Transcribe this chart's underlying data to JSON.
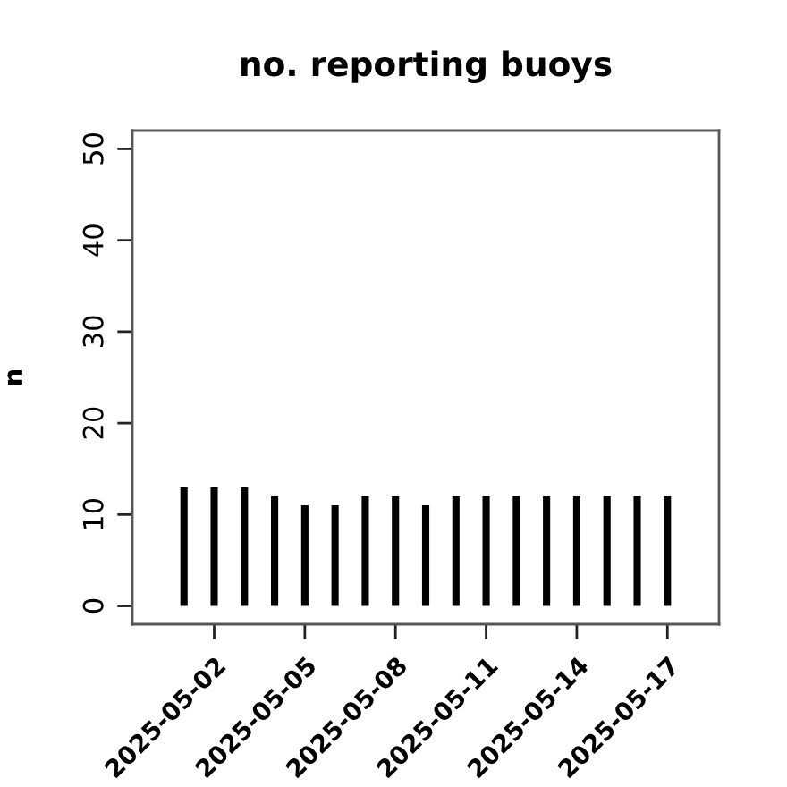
{
  "chart_data": {
    "type": "bar",
    "title": "no. reporting buoys",
    "ylabel": "n",
    "x": [
      "2025-05-01",
      "2025-05-02",
      "2025-05-03",
      "2025-05-04",
      "2025-05-05",
      "2025-05-06",
      "2025-05-07",
      "2025-05-08",
      "2025-05-09",
      "2025-05-10",
      "2025-05-11",
      "2025-05-12",
      "2025-05-13",
      "2025-05-14",
      "2025-05-15",
      "2025-05-16",
      "2025-05-17"
    ],
    "values": [
      13,
      13,
      13,
      12,
      11,
      11,
      12,
      12,
      11,
      12,
      12,
      12,
      12,
      12,
      12,
      12,
      12
    ],
    "color": "#000000",
    "xlim": [
      "2025-04-29T07:00",
      "2025-05-18T17:00"
    ],
    "xticks": [
      {
        "value": "2025-05-02",
        "label": "2025-05-02"
      },
      {
        "value": "2025-05-05",
        "label": "2025-05-05"
      },
      {
        "value": "2025-05-08",
        "label": "2025-05-08"
      },
      {
        "value": "2025-05-11",
        "label": "2025-05-11"
      },
      {
        "value": "2025-05-14",
        "label": "2025-05-14"
      },
      {
        "value": "2025-05-17",
        "label": "2025-05-17"
      }
    ],
    "ylim": [
      -2,
      52
    ],
    "yticks": [
      0,
      10,
      20,
      30,
      40,
      50
    ]
  }
}
